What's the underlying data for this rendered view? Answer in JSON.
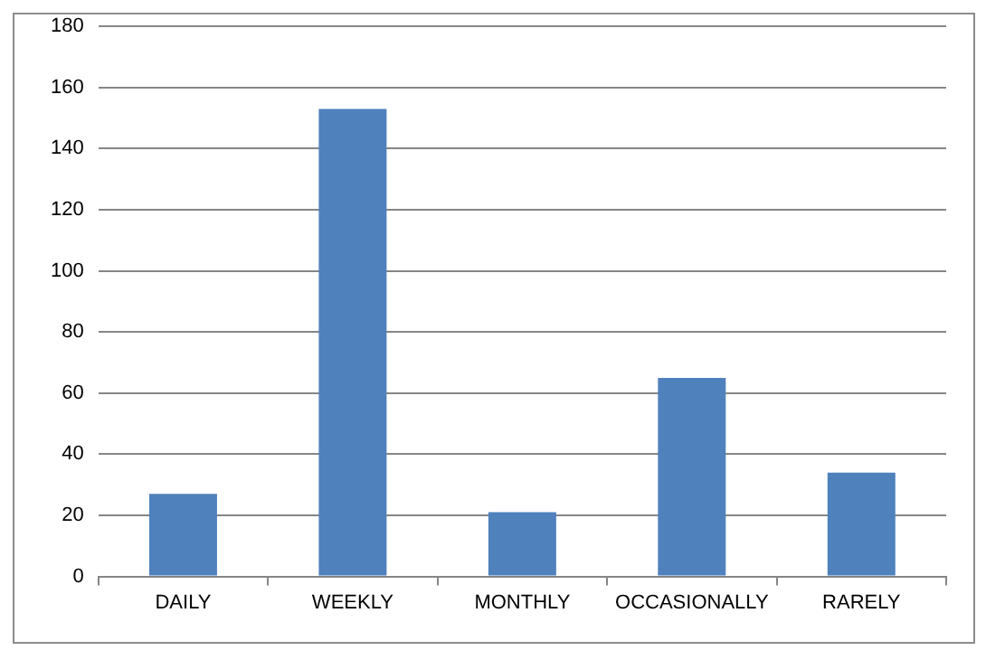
{
  "chart_data": {
    "type": "bar",
    "categories": [
      "DAILY",
      "WEEKLY",
      "MONTHLY",
      "OCCASIONALLY",
      "RARELY"
    ],
    "values": [
      27,
      153,
      21,
      65,
      34
    ],
    "color": "#4f81bd",
    "ylim": [
      0,
      180
    ],
    "yticks": [
      0,
      20,
      40,
      60,
      80,
      100,
      120,
      140,
      160,
      180
    ],
    "grid": "y",
    "legend": false
  }
}
